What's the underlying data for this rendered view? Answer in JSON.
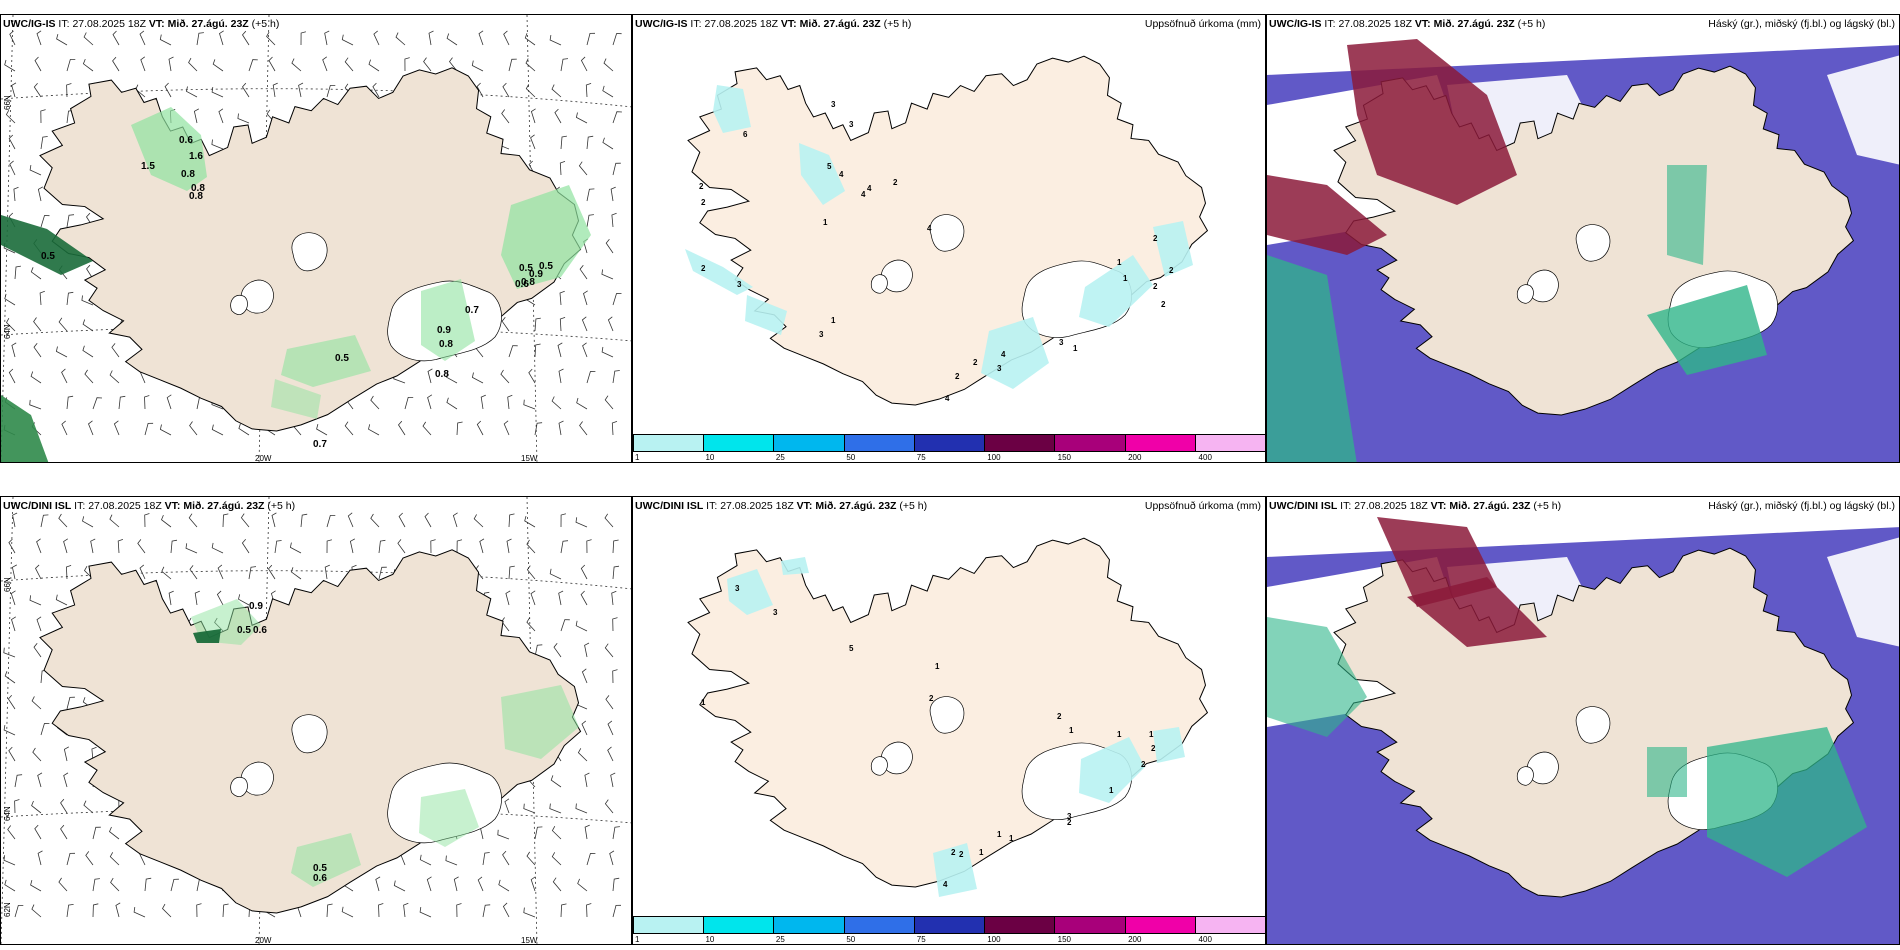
{
  "panels": {
    "ig_wind": {
      "model": "UWC/IG-IS",
      "it_label": "IT:",
      "it_value": "27.08.2025 18Z",
      "vt_label": "VT:",
      "vt_value": "Mið. 27.ágú. 23Z",
      "lead": "(+5 h)",
      "right": ""
    },
    "ig_precip": {
      "model": "UWC/IG-IS",
      "it_label": "IT:",
      "it_value": "27.08.2025 18Z",
      "vt_label": "VT:",
      "vt_value": "Mið. 27.ágú. 23Z",
      "lead": "(+5 h)",
      "right": "Uppsöfnuð úrkoma (mm)"
    },
    "ig_cloud": {
      "model": "UWC/IG-IS",
      "it_label": "IT:",
      "it_value": "27.08.2025 18Z",
      "vt_label": "VT:",
      "vt_value": "Mið. 27.ágú. 23Z",
      "lead": "(+5 h)",
      "right": "Háský (gr.), miðský (fj.bl.) og lágský (bl.)"
    },
    "dini_wind": {
      "model": "UWC/DINI ISL",
      "it_label": "IT:",
      "it_value": "27.08.2025 18Z",
      "vt_label": "VT:",
      "vt_value": "Mið. 27.ágú. 23Z",
      "lead": "(+5 h)",
      "right": ""
    },
    "dini_precip": {
      "model": "UWC/DINI ISL",
      "it_label": "IT:",
      "it_value": "27.08.2025 18Z",
      "vt_label": "VT:",
      "vt_value": "Mið. 27.ágú. 23Z",
      "lead": "(+5 h)",
      "right": "Uppsöfnuð úrkoma (mm)"
    },
    "dini_cloud": {
      "model": "UWC/DINI ISL",
      "it_label": "IT:",
      "it_value": "27.08.2025 18Z",
      "vt_label": "VT:",
      "vt_value": "Mið. 27.ágú. 23Z",
      "lead": "(+5 h)",
      "right": "Háský (gr.), miðský (fj.bl.) og lágský (bl.)"
    }
  },
  "axis_labels": {
    "lon_left": "20W",
    "lon_right": "15W",
    "lat_top": "66N",
    "lat_mid": "64N",
    "lat_bottom": "62N"
  },
  "colorbar": {
    "ticks": [
      "1",
      "10",
      "25",
      "50",
      "75",
      "100",
      "150",
      "200",
      "400"
    ],
    "colors": [
      "#b8f2f2",
      "#00e5ec",
      "#00b7ee",
      "#2f6fe8",
      "#2230b0",
      "#6b0044",
      "#a8007a",
      "#f000a8",
      "#f6b4f2"
    ]
  },
  "colors": {
    "land": "#efe3d5",
    "land_light": "#fbeee1",
    "gust_green": "#90e3a0",
    "cloud_blue": "#5850c4",
    "cloud_red": "#8b1a3a",
    "cloud_green": "#2fb58a"
  },
  "gust_labels_ig": [
    "0.6",
    "1.6",
    "1.5",
    "0.8",
    "0.8",
    "0.8",
    "0.5",
    "0.7",
    "0.8",
    "0.9",
    "0.8",
    "0.5",
    "0.5",
    "0.5",
    "0.7",
    "0.8",
    "0.6",
    "0.9"
  ],
  "gust_labels_dini": [
    "0.9",
    "0.5",
    "0.6",
    "0.5",
    "0.6"
  ],
  "precip_labels_ig": [
    "3",
    "3",
    "6",
    "5",
    "4",
    "4",
    "4",
    "2",
    "1",
    "4",
    "2",
    "2",
    "3",
    "2",
    "1",
    "3",
    "2",
    "2",
    "1",
    "1",
    "2",
    "2",
    "2",
    "1",
    "3",
    "4",
    "3",
    "2",
    "4"
  ],
  "precip_labels_dini": [
    "3",
    "3",
    "5",
    "1",
    "2",
    "1",
    "2",
    "1",
    "1",
    "1",
    "2",
    "2",
    "1",
    "2",
    "3",
    "2",
    "1",
    "1",
    "1",
    "2",
    "4"
  ]
}
